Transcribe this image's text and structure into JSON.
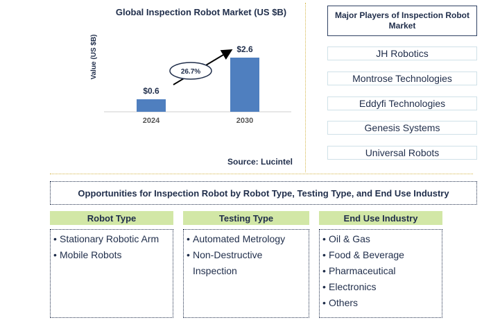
{
  "chart_data": {
    "type": "bar",
    "title": "Global Inspection Robot Market (US $B)",
    "ylabel": "Value (US $B)",
    "categories": [
      "2024",
      "2030"
    ],
    "values": [
      0.6,
      2.6
    ],
    "value_labels": [
      "$0.6",
      "$2.6"
    ],
    "annotation": "26.7%",
    "source": "Source: Lucintel",
    "bar_color": "#4f7fbf"
  },
  "players": {
    "title": "Major Players of Inspection Robot Market",
    "items": [
      "JH Robotics",
      "Montrose Technologies",
      "Eddyfi Technologies",
      "Genesis Systems",
      "Universal Robots"
    ]
  },
  "opportunities": {
    "title": "Opportunities for Inspection Robot by Robot Type, Testing Type, and End Use Industry",
    "categories": [
      {
        "name": "Robot Type",
        "items": [
          "Stationary Robotic Arm",
          "Mobile Robots"
        ]
      },
      {
        "name": "Testing Type",
        "items": [
          "Automated Metrology",
          "Non-Destructive Inspection"
        ]
      },
      {
        "name": "End Use Industry",
        "items": [
          "Oil & Gas",
          "Food & Beverage",
          "Pharmaceutical",
          "Electronics",
          "Others"
        ]
      }
    ]
  },
  "colors": {
    "header_green": "#d2e7a6",
    "text_navy": "#1f2d4a",
    "separator_gold": "#d4b64a"
  }
}
